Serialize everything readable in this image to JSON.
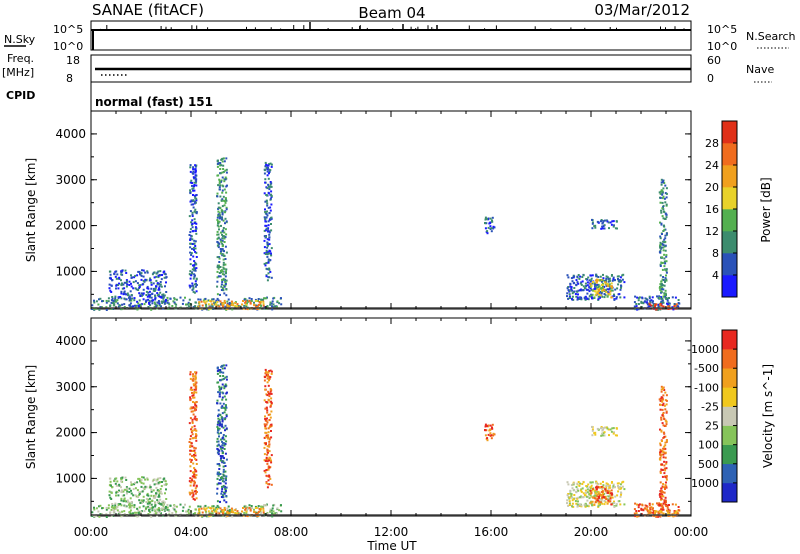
{
  "header": {
    "station": "SANAE (fitACF)",
    "beam": "Beam 04",
    "date": "03/Mar/2012"
  },
  "strips": {
    "nsky_label": "N.Sky",
    "nsearch_label": "N.Search",
    "nsky_ticks": [
      "10^5",
      "10^0"
    ],
    "nsearch_ticks": [
      "10^5",
      "10^0"
    ],
    "freq_label": "Freq.",
    "freq_unit": "[MHz]",
    "freq_ticks": [
      "18",
      "8"
    ],
    "nave_label": "Nave",
    "nave_ticks": [
      "60",
      "0"
    ],
    "cpid_label": "CPID",
    "cpid_text": "normal (fast) 151"
  },
  "axes": {
    "xlabel": "Time UT",
    "x_ticks": [
      "00:00",
      "04:00",
      "08:00",
      "12:00",
      "16:00",
      "20:00",
      "00:00"
    ],
    "ylabel": "Slant Range [km]",
    "y_ticks": [
      "1000",
      "2000",
      "3000",
      "4000"
    ]
  },
  "chart_data": [
    {
      "type": "heatmap",
      "panel": "power",
      "xlabel": "Time UT",
      "ylabel": "Slant Range [km]",
      "xlim": [
        0,
        24
      ],
      "ylim": [
        180,
        4500
      ],
      "colorbar_label": "Power [dB]",
      "colorbar_ticks": [
        "4",
        "8",
        "12",
        "16",
        "20",
        "24",
        "28"
      ],
      "colorbar_colors": [
        "#1a1aff",
        "#2a52b8",
        "#3c8c6e",
        "#54b050",
        "#e8d22a",
        "#f0a01e",
        "#f06c1e",
        "#e03018"
      ],
      "echo_regions": [
        {
          "t0": 0.0,
          "t1": 7.6,
          "r0": 180,
          "r1": 450,
          "level": 2
        },
        {
          "t0": 0.7,
          "t1": 3.0,
          "r0": 250,
          "r1": 1050,
          "level": 1
        },
        {
          "t0": 3.9,
          "t1": 4.2,
          "r0": 500,
          "r1": 3400,
          "level": 1
        },
        {
          "t0": 5.0,
          "t1": 5.4,
          "r0": 500,
          "r1": 3500,
          "level": 2
        },
        {
          "t0": 6.9,
          "t1": 7.2,
          "r0": 800,
          "r1": 3400,
          "level": 1
        },
        {
          "t0": 4.2,
          "t1": 6.9,
          "r0": 200,
          "r1": 380,
          "level": 5
        },
        {
          "t0": 15.7,
          "t1": 16.1,
          "r0": 1850,
          "r1": 2200,
          "level": 1
        },
        {
          "t0": 19.0,
          "t1": 21.3,
          "r0": 400,
          "r1": 950,
          "level": 1
        },
        {
          "t0": 19.9,
          "t1": 20.8,
          "r0": 450,
          "r1": 850,
          "level": 4
        },
        {
          "t0": 20.0,
          "t1": 21.0,
          "r0": 1950,
          "r1": 2150,
          "level": 1
        },
        {
          "t0": 21.7,
          "t1": 23.5,
          "r0": 180,
          "r1": 480,
          "level": 1
        },
        {
          "t0": 22.3,
          "t1": 23.4,
          "r0": 190,
          "r1": 320,
          "level": 7
        },
        {
          "t0": 22.7,
          "t1": 23.0,
          "r0": 400,
          "r1": 3100,
          "level": 2
        }
      ]
    },
    {
      "type": "heatmap",
      "panel": "velocity",
      "xlabel": "Time UT",
      "ylabel": "Slant Range [km]",
      "xlim": [
        0,
        24
      ],
      "ylim": [
        180,
        4500
      ],
      "colorbar_label": "Velocity [m s^-1]",
      "colorbar_ticks": [
        "1000",
        "500",
        "100",
        "25",
        "-25",
        "-100",
        "-500",
        "-1000"
      ],
      "colorbar_colors": [
        "#1e28c8",
        "#2e62b4",
        "#3a9a50",
        "#86c45a",
        "#c8c8b4",
        "#f0c81e",
        "#f0a01e",
        "#f06c1e",
        "#e82820"
      ],
      "echo_regions": [
        {
          "t0": 0.0,
          "t1": 7.6,
          "r0": 180,
          "r1": 450,
          "level": 3
        },
        {
          "t0": 0.7,
          "t1": 3.0,
          "r0": 250,
          "r1": 1050,
          "level": 3
        },
        {
          "t0": 3.9,
          "t1": 4.2,
          "r0": 500,
          "r1": 3400,
          "level": 7
        },
        {
          "t0": 5.0,
          "t1": 5.4,
          "r0": 500,
          "r1": 3500,
          "level": 1
        },
        {
          "t0": 6.9,
          "t1": 7.2,
          "r0": 800,
          "r1": 3400,
          "level": 7
        },
        {
          "t0": 4.2,
          "t1": 6.9,
          "r0": 200,
          "r1": 380,
          "level": 6
        },
        {
          "t0": 15.7,
          "t1": 16.1,
          "r0": 1850,
          "r1": 2200,
          "level": 7
        },
        {
          "t0": 19.0,
          "t1": 21.3,
          "r0": 400,
          "r1": 950,
          "level": 4
        },
        {
          "t0": 19.9,
          "t1": 20.8,
          "r0": 450,
          "r1": 850,
          "level": 7
        },
        {
          "t0": 20.0,
          "t1": 21.0,
          "r0": 1950,
          "r1": 2150,
          "level": 4
        },
        {
          "t0": 21.7,
          "t1": 23.5,
          "r0": 180,
          "r1": 480,
          "level": 7
        },
        {
          "t0": 22.3,
          "t1": 23.4,
          "r0": 190,
          "r1": 320,
          "level": 6
        },
        {
          "t0": 22.7,
          "t1": 23.0,
          "r0": 400,
          "r1": 3100,
          "level": 7
        }
      ]
    }
  ]
}
